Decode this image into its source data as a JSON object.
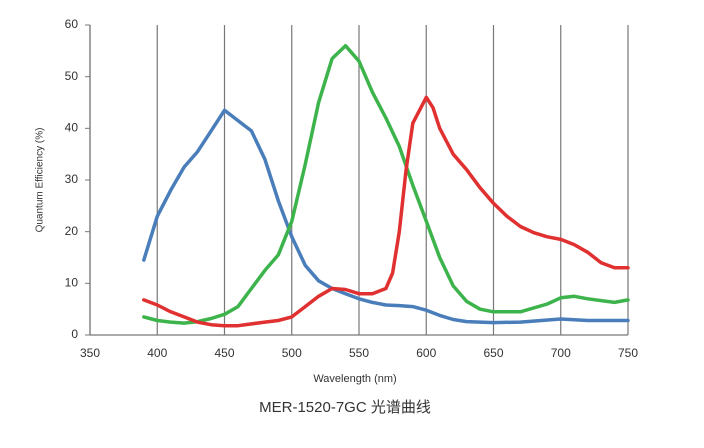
{
  "chart_data": {
    "type": "line",
    "xlabel": "Wavelength (nm)",
    "ylabel": "Quantum Efficiency (%)",
    "caption": "MER-1520-7GC 光谱曲线",
    "xlim": [
      350,
      750
    ],
    "xticks": [
      350,
      400,
      450,
      500,
      550,
      600,
      650,
      700,
      750
    ],
    "ylim": [
      0,
      60
    ],
    "yticks": [
      0,
      10,
      20,
      30,
      40,
      50,
      60
    ],
    "grid": "x",
    "series": [
      {
        "color": "#4a7ebb",
        "x": [
          390,
          400,
          410,
          420,
          430,
          440,
          450,
          455,
          460,
          470,
          480,
          490,
          500,
          510,
          520,
          530,
          540,
          550,
          560,
          570,
          580,
          590,
          600,
          610,
          620,
          630,
          650,
          670,
          700,
          720,
          750
        ],
        "values": [
          14.5,
          23,
          28,
          32.5,
          35.5,
          39.5,
          43.5,
          42.5,
          41.5,
          39.5,
          34,
          26,
          19,
          13.5,
          10.5,
          9,
          8,
          7,
          6.3,
          5.8,
          5.7,
          5.5,
          4.8,
          3.8,
          3,
          2.6,
          2.4,
          2.5,
          3.1,
          2.8,
          2.8
        ]
      },
      {
        "color": "#3cb44b",
        "x": [
          390,
          400,
          410,
          420,
          430,
          440,
          450,
          460,
          470,
          480,
          490,
          500,
          510,
          520,
          530,
          540,
          550,
          560,
          570,
          580,
          590,
          600,
          610,
          620,
          630,
          640,
          650,
          670,
          690,
          700,
          710,
          720,
          740,
          750
        ],
        "values": [
          3.5,
          2.8,
          2.5,
          2.3,
          2.6,
          3.2,
          4,
          5.5,
          9,
          12.5,
          15.5,
          22,
          33,
          45,
          53.5,
          56,
          53,
          47,
          42,
          36.5,
          29,
          22,
          15,
          9.5,
          6.5,
          5,
          4.5,
          4.5,
          6,
          7.2,
          7.5,
          7,
          6.3,
          6.8
        ]
      },
      {
        "color": "#e03030",
        "x": [
          390,
          400,
          410,
          420,
          430,
          440,
          450,
          460,
          480,
          490,
          500,
          510,
          520,
          530,
          540,
          550,
          560,
          570,
          575,
          580,
          585,
          590,
          600,
          605,
          610,
          620,
          630,
          640,
          650,
          660,
          670,
          680,
          690,
          700,
          710,
          720,
          730,
          740,
          750
        ],
        "values": [
          6.8,
          5.8,
          4.5,
          3.5,
          2.5,
          2,
          1.8,
          1.8,
          2.5,
          2.8,
          3.5,
          5.5,
          7.5,
          9,
          8.8,
          8,
          8,
          9,
          12,
          20,
          32,
          41,
          46,
          44,
          40,
          35,
          32,
          28.5,
          25.5,
          23,
          21,
          19.8,
          19,
          18.5,
          17.5,
          16,
          14,
          13,
          13
        ]
      }
    ]
  }
}
